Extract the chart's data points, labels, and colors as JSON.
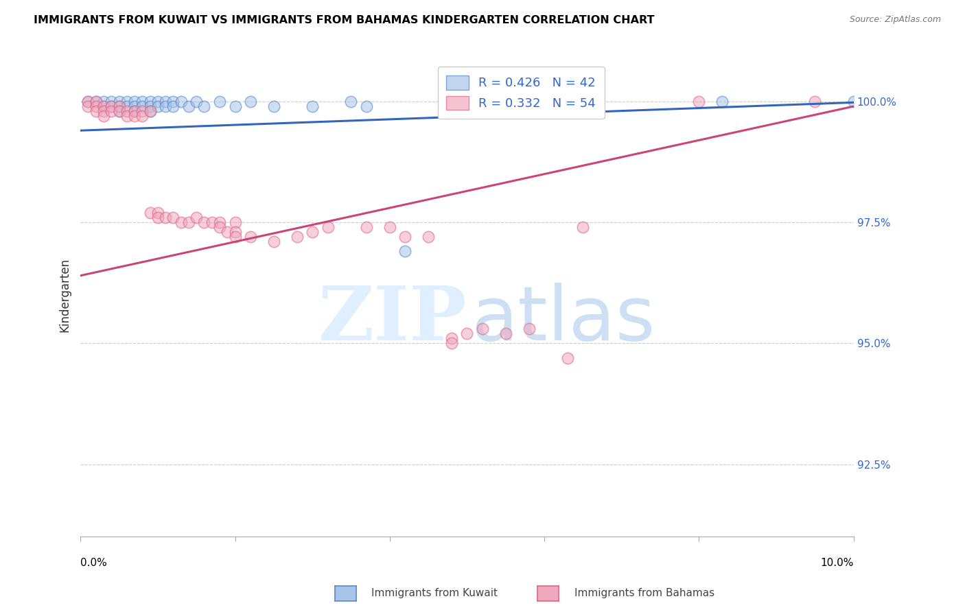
{
  "title": "IMMIGRANTS FROM KUWAIT VS IMMIGRANTS FROM BAHAMAS KINDERGARTEN CORRELATION CHART",
  "source": "Source: ZipAtlas.com",
  "ylabel": "Kindergarten",
  "ytick_labels": [
    "92.5%",
    "95.0%",
    "97.5%",
    "100.0%"
  ],
  "ytick_values": [
    0.925,
    0.95,
    0.975,
    1.0
  ],
  "xmin": 0.0,
  "xmax": 0.1,
  "ymin": 0.91,
  "ymax": 1.01,
  "legend_kuwait": "R = 0.426   N = 42",
  "legend_bahamas": "R = 0.332   N = 54",
  "kuwait_color": "#aac4e8",
  "bahamas_color": "#f0a8bc",
  "kuwait_edge": "#5588cc",
  "bahamas_edge": "#dd6688",
  "trendline_kuwait_color": "#3366bb",
  "trendline_bahamas_color": "#cc4477",
  "kuwait_points": [
    [
      0.001,
      1.0
    ],
    [
      0.002,
      1.0
    ],
    [
      0.003,
      1.0
    ],
    [
      0.003,
      0.999
    ],
    [
      0.004,
      1.0
    ],
    [
      0.004,
      0.999
    ],
    [
      0.005,
      1.0
    ],
    [
      0.005,
      0.999
    ],
    [
      0.005,
      0.998
    ],
    [
      0.006,
      1.0
    ],
    [
      0.006,
      0.999
    ],
    [
      0.007,
      1.0
    ],
    [
      0.007,
      0.999
    ],
    [
      0.007,
      0.998
    ],
    [
      0.008,
      1.0
    ],
    [
      0.008,
      0.999
    ],
    [
      0.009,
      1.0
    ],
    [
      0.009,
      0.999
    ],
    [
      0.009,
      0.998
    ],
    [
      0.01,
      1.0
    ],
    [
      0.01,
      0.999
    ],
    [
      0.011,
      1.0
    ],
    [
      0.011,
      0.999
    ],
    [
      0.012,
      1.0
    ],
    [
      0.012,
      0.999
    ],
    [
      0.013,
      1.0
    ],
    [
      0.014,
      0.999
    ],
    [
      0.015,
      1.0
    ],
    [
      0.016,
      0.999
    ],
    [
      0.018,
      1.0
    ],
    [
      0.02,
      0.999
    ],
    [
      0.022,
      1.0
    ],
    [
      0.025,
      0.999
    ],
    [
      0.03,
      0.999
    ],
    [
      0.035,
      1.0
    ],
    [
      0.037,
      0.999
    ],
    [
      0.042,
      0.969
    ],
    [
      0.05,
      0.999
    ],
    [
      0.06,
      0.999
    ],
    [
      0.065,
      1.0
    ],
    [
      0.083,
      1.0
    ],
    [
      0.1,
      1.0
    ]
  ],
  "bahamas_points": [
    [
      0.001,
      1.0
    ],
    [
      0.001,
      0.999
    ],
    [
      0.002,
      1.0
    ],
    [
      0.002,
      0.999
    ],
    [
      0.002,
      0.998
    ],
    [
      0.003,
      0.999
    ],
    [
      0.003,
      0.998
    ],
    [
      0.003,
      0.997
    ],
    [
      0.004,
      0.999
    ],
    [
      0.004,
      0.998
    ],
    [
      0.005,
      0.999
    ],
    [
      0.005,
      0.998
    ],
    [
      0.006,
      0.998
    ],
    [
      0.006,
      0.997
    ],
    [
      0.007,
      0.998
    ],
    [
      0.007,
      0.997
    ],
    [
      0.008,
      0.998
    ],
    [
      0.008,
      0.997
    ],
    [
      0.009,
      0.998
    ],
    [
      0.009,
      0.977
    ],
    [
      0.01,
      0.977
    ],
    [
      0.01,
      0.976
    ],
    [
      0.011,
      0.976
    ],
    [
      0.012,
      0.976
    ],
    [
      0.013,
      0.975
    ],
    [
      0.014,
      0.975
    ],
    [
      0.015,
      0.976
    ],
    [
      0.016,
      0.975
    ],
    [
      0.017,
      0.975
    ],
    [
      0.018,
      0.975
    ],
    [
      0.018,
      0.974
    ],
    [
      0.019,
      0.973
    ],
    [
      0.02,
      0.975
    ],
    [
      0.02,
      0.973
    ],
    [
      0.02,
      0.972
    ],
    [
      0.022,
      0.972
    ],
    [
      0.025,
      0.971
    ],
    [
      0.028,
      0.972
    ],
    [
      0.03,
      0.973
    ],
    [
      0.032,
      0.974
    ],
    [
      0.037,
      0.974
    ],
    [
      0.04,
      0.974
    ],
    [
      0.042,
      0.972
    ],
    [
      0.045,
      0.972
    ],
    [
      0.048,
      0.951
    ],
    [
      0.048,
      0.95
    ],
    [
      0.05,
      0.952
    ],
    [
      0.052,
      0.953
    ],
    [
      0.055,
      0.952
    ],
    [
      0.058,
      0.953
    ],
    [
      0.063,
      0.947
    ],
    [
      0.065,
      0.974
    ],
    [
      0.08,
      1.0
    ],
    [
      0.095,
      1.0
    ]
  ],
  "kuwait_trend_x": [
    0.0,
    0.1
  ],
  "kuwait_trend_y": [
    0.994,
    0.9998
  ],
  "bahamas_trend_x": [
    0.0,
    0.1
  ],
  "bahamas_trend_y": [
    0.964,
    0.999
  ],
  "bottom_legend_kuwait": "Immigrants from Kuwait",
  "bottom_legend_bahamas": "Immigrants from Bahamas"
}
